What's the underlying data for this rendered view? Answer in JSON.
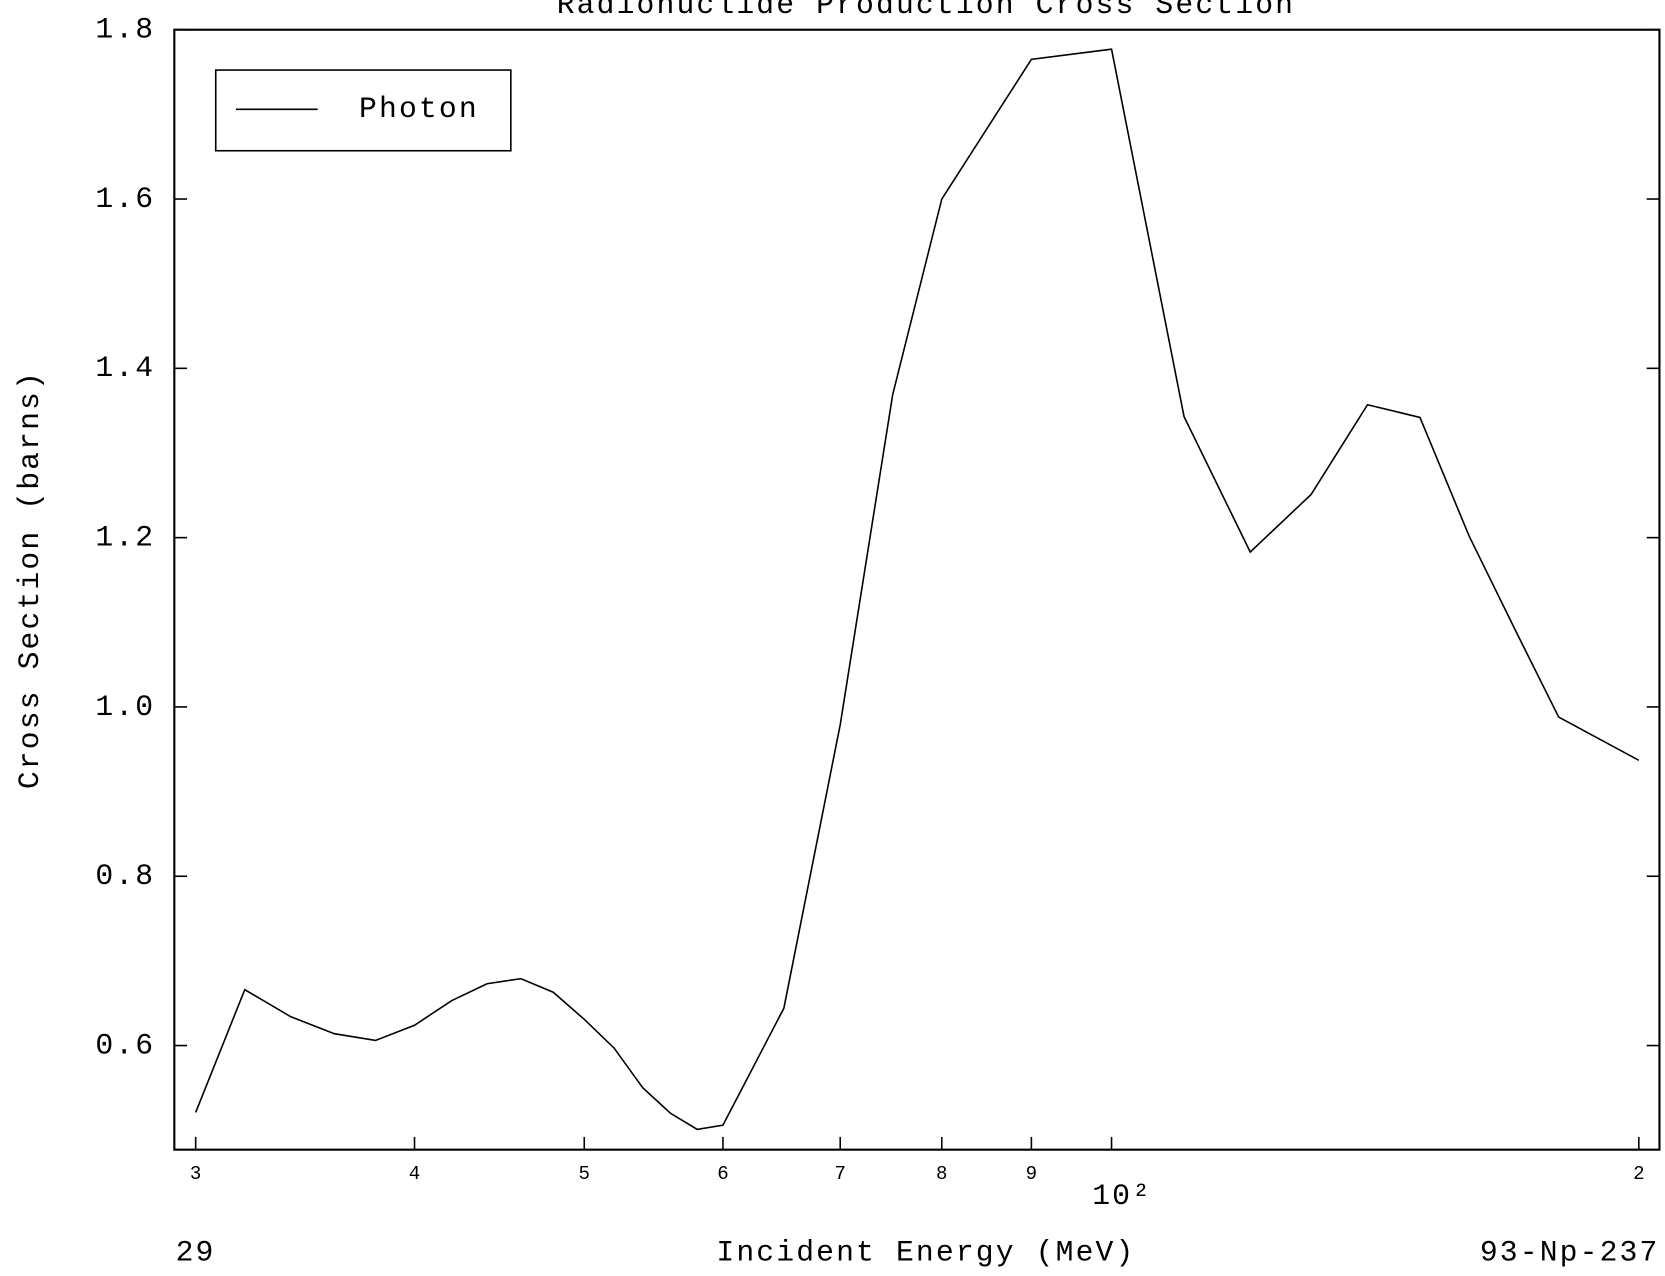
{
  "chart_data": {
    "type": "line",
    "title": "Radionuclide Production Cross Section",
    "x_label": "Incident Energy (MeV)",
    "y_label": "Cross Section (barns)",
    "footer_left": "29",
    "footer_right": "93-Np-237",
    "x_log": true,
    "legend": "upper left",
    "xlim": [
      29.17,
      205.5
    ],
    "ylim": [
      0.477,
      1.8
    ],
    "xticks": [
      {
        "value": 30,
        "label": "3"
      },
      {
        "value": 40,
        "label": "4"
      },
      {
        "value": 50,
        "label": "5"
      },
      {
        "value": 60,
        "label": "6"
      },
      {
        "value": 70,
        "label": "7"
      },
      {
        "value": 80,
        "label": "8"
      },
      {
        "value": 90,
        "label": "9"
      },
      {
        "value": 100,
        "label": "10²"
      },
      {
        "value": 200,
        "label": "2"
      }
    ],
    "yticks": [
      {
        "value": 0.6,
        "label": "0.6"
      },
      {
        "value": 0.8,
        "label": "0.8"
      },
      {
        "value": 1,
        "label": "1.0"
      },
      1.2,
      1.4,
      1.6,
      1.8
    ],
    "x": [
      30,
      32,
      34,
      36,
      38,
      40,
      42,
      44,
      46,
      48,
      50,
      52,
      54,
      56,
      58,
      60,
      65,
      70,
      75,
      80,
      90,
      100,
      110,
      120,
      130,
      140,
      150,
      160,
      170,
      180,
      200
    ],
    "series": [
      {
        "name": "Photon",
        "color": "#000000",
        "values": [
          0.521,
          0.666,
          0.634,
          0.614,
          0.606,
          0.624,
          0.653,
          0.673,
          0.679,
          0.663,
          0.631,
          0.597,
          0.55,
          0.52,
          0.501,
          0.506,
          0.644,
          0.979,
          1.369,
          1.6,
          1.765,
          1.777,
          1.343,
          1.183,
          1.251,
          1.357,
          1.342,
          1.202,
          1.091,
          0.988,
          0.937
        ]
      }
    ]
  }
}
